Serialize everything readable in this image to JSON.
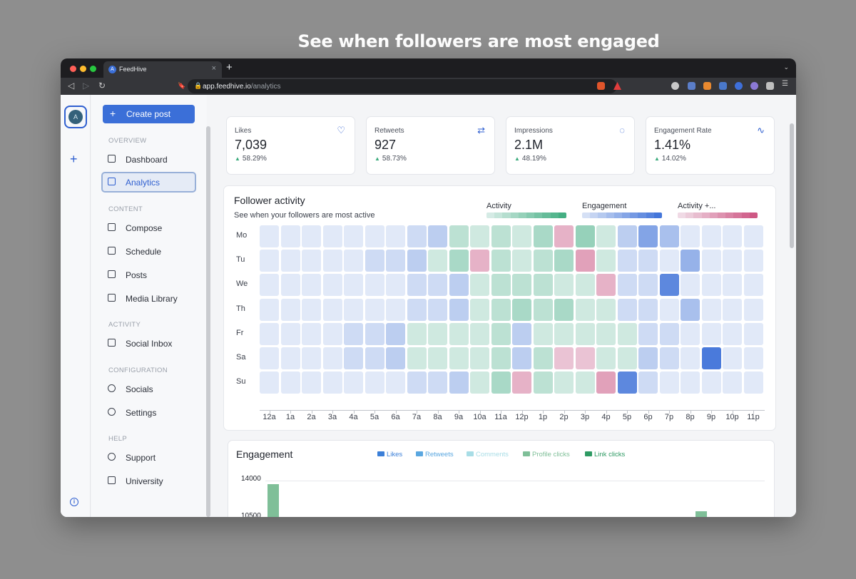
{
  "headline": "See when followers are most engaged",
  "browser": {
    "tab_title": "FeedHive",
    "tab_favicon": "A",
    "tab_close": "×",
    "new_tab": "+",
    "tab_menu": "⌄",
    "url_host": "app.feedhive.io",
    "url_path": "/analytics",
    "nav_back": "◁",
    "nav_forward": "▷",
    "nav_reload": "↻",
    "bookmark": "🔖",
    "lock": "🔒"
  },
  "rail": {
    "avatar_initial": "A",
    "plus": "+",
    "info": "i"
  },
  "sidebar": {
    "create_label": "Create post",
    "create_plus": "+",
    "sections": {
      "overview": "OVERVIEW",
      "content": "CONTENT",
      "activity": "ACTIVITY",
      "configuration": "CONFIGURATION",
      "help": "HELP"
    },
    "items": {
      "dashboard": "Dashboard",
      "analytics": "Analytics",
      "compose": "Compose",
      "schedule": "Schedule",
      "posts": "Posts",
      "media_library": "Media Library",
      "social_inbox": "Social Inbox",
      "socials": "Socials",
      "settings": "Settings",
      "support": "Support",
      "university": "University"
    }
  },
  "stats": [
    {
      "label": "Likes",
      "value": "7,039",
      "change": "58.29%",
      "icon": "heart-icon",
      "glyph": "♡"
    },
    {
      "label": "Retweets",
      "value": "927",
      "change": "58.73%",
      "icon": "retweet-icon",
      "glyph": "⇄"
    },
    {
      "label": "Impressions",
      "value": "2.1M",
      "change": "48.19%",
      "icon": "lightbulb-icon",
      "glyph": "◌"
    },
    {
      "label": "Engagement Rate",
      "value": "1.41%",
      "change": "14.02%",
      "icon": "pulse-icon",
      "glyph": "∿"
    }
  ],
  "follower_activity": {
    "title": "Follower activity",
    "subtitle": "See when your followers are most active",
    "legend": {
      "activity": "Activity",
      "engagement": "Engagement",
      "combined": "Activity +..."
    },
    "colors": {
      "activity_hex": "#3cab7d",
      "engagement_hex": "#3b6fd8",
      "combined_hex": "#cc4f7e"
    },
    "days": [
      "Mo",
      "Tu",
      "We",
      "Th",
      "Fr",
      "Sa",
      "Su"
    ],
    "hours": [
      "12a",
      "1a",
      "2a",
      "3a",
      "4a",
      "5a",
      "6a",
      "7a",
      "8a",
      "9a",
      "10a",
      "11a",
      "12p",
      "1p",
      "2p",
      "3p",
      "4p",
      "5p",
      "6p",
      "7p",
      "8p",
      "9p",
      "10p",
      "11p"
    ],
    "grid": [
      [
        "b1",
        "b1",
        "b1",
        "b1",
        "b1",
        "b1",
        "b1",
        "b2",
        "b3",
        "g3",
        "g2",
        "g3",
        "g2",
        "g4",
        "p4",
        "g5",
        "g2",
        "b3",
        "b6",
        "b4",
        "b1",
        "b1",
        "b1",
        "b1"
      ],
      [
        "b1",
        "b1",
        "b1",
        "b1",
        "b1",
        "b2",
        "b2",
        "b3",
        "g2",
        "g4",
        "p4",
        "g3",
        "g2",
        "g3",
        "g4",
        "p5",
        "g2",
        "b2",
        "b2",
        "b1",
        "b5",
        "b1",
        "b1",
        "b1"
      ],
      [
        "b1",
        "b1",
        "b1",
        "b1",
        "b1",
        "b1",
        "b1",
        "b2",
        "b2",
        "b3",
        "g2",
        "g3",
        "g3",
        "g3",
        "g2",
        "g2",
        "p4",
        "b2",
        "b2",
        "b8",
        "b1",
        "b1",
        "b1",
        "b1"
      ],
      [
        "b1",
        "b1",
        "b1",
        "b1",
        "b1",
        "b1",
        "b1",
        "b2",
        "b2",
        "b3",
        "g2",
        "g3",
        "g4",
        "g3",
        "g4",
        "g2",
        "g2",
        "b2",
        "b2",
        "b1",
        "b4",
        "b1",
        "b1",
        "b1"
      ],
      [
        "b1",
        "b1",
        "b1",
        "b1",
        "b2",
        "b2",
        "b3",
        "g2",
        "g2",
        "g2",
        "g2",
        "g3",
        "b3",
        "g2",
        "g2",
        "g2",
        "g2",
        "g2",
        "b2",
        "b2",
        "b1",
        "b1",
        "b1",
        "b1"
      ],
      [
        "b1",
        "b1",
        "b1",
        "b1",
        "b2",
        "b2",
        "b3",
        "g2",
        "g2",
        "g2",
        "g2",
        "g3",
        "b3",
        "g3",
        "p3",
        "p3",
        "g2",
        "g2",
        "b3",
        "b2",
        "b1",
        "b9",
        "b1",
        "b1"
      ],
      [
        "b1",
        "b1",
        "b1",
        "b1",
        "b1",
        "b1",
        "b1",
        "b2",
        "b2",
        "b3",
        "g2",
        "g4",
        "p4",
        "g3",
        "g2",
        "g2",
        "p5",
        "b8",
        "b2",
        "b1",
        "b1",
        "b1",
        "b1",
        "b1"
      ]
    ]
  },
  "engagement": {
    "title": "Engagement",
    "legend": [
      {
        "label": "Likes",
        "color": "#3b7fd8"
      },
      {
        "label": "Retweets",
        "color": "#5aa7e0"
      },
      {
        "label": "Comments",
        "color": "#a8dde6"
      },
      {
        "label": "Profile clicks",
        "color": "#7fbf98"
      },
      {
        "label": "Link clicks",
        "color": "#2e9a63"
      }
    ],
    "y_ticks": [
      "14000",
      "10500"
    ]
  }
}
